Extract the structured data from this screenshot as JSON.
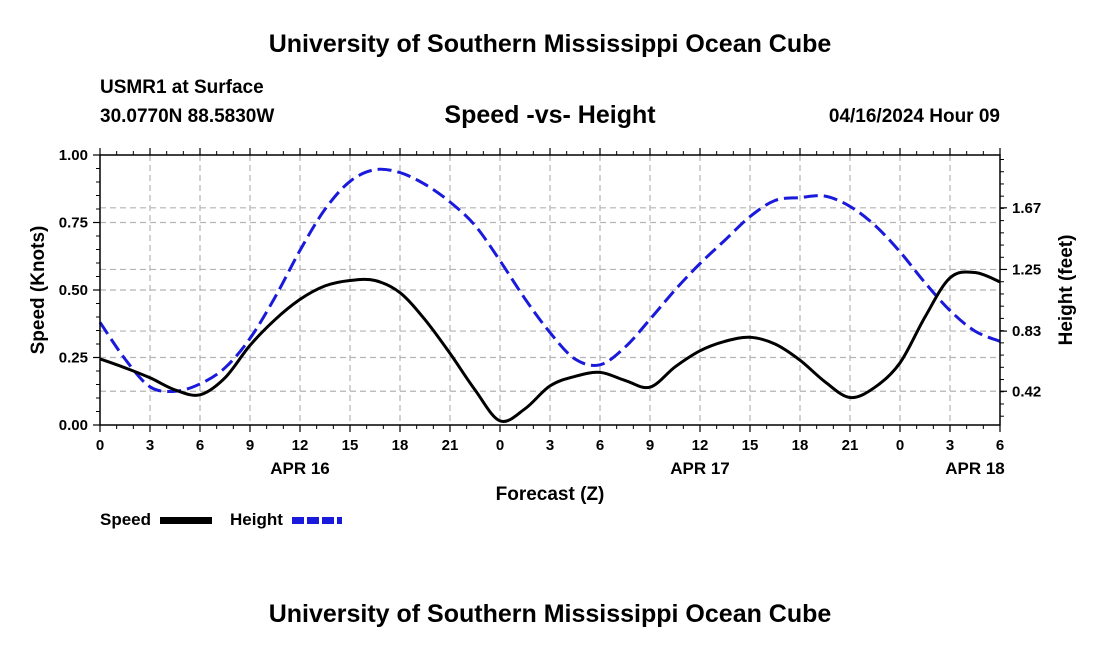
{
  "header": {
    "title": "University of Southern Mississippi Ocean Cube",
    "station": "USMR1 at Surface",
    "coords": "30.0770N  88.5830W",
    "datetime": "04/16/2024 Hour 09"
  },
  "footer": {
    "title": "University of Southern Mississippi Ocean Cube"
  },
  "chart_data": {
    "type": "line",
    "title": "Speed -vs- Height",
    "xlabel": "Forecast (Z)",
    "ylabel_left": "Speed (Knots)",
    "ylabel_right": "Height (feet)",
    "x_hours_range": [
      0,
      54
    ],
    "x_ticks": [
      {
        "h": 0,
        "label": "0"
      },
      {
        "h": 3,
        "label": "3"
      },
      {
        "h": 6,
        "label": "6"
      },
      {
        "h": 9,
        "label": "9"
      },
      {
        "h": 12,
        "label": "12"
      },
      {
        "h": 15,
        "label": "15"
      },
      {
        "h": 18,
        "label": "18"
      },
      {
        "h": 21,
        "label": "21"
      },
      {
        "h": 24,
        "label": "0"
      },
      {
        "h": 27,
        "label": "3"
      },
      {
        "h": 30,
        "label": "6"
      },
      {
        "h": 33,
        "label": "9"
      },
      {
        "h": 36,
        "label": "12"
      },
      {
        "h": 39,
        "label": "15"
      },
      {
        "h": 42,
        "label": "18"
      },
      {
        "h": 45,
        "label": "21"
      },
      {
        "h": 48,
        "label": "0"
      },
      {
        "h": 51,
        "label": "3"
      },
      {
        "h": 54,
        "label": "6"
      }
    ],
    "date_labels": [
      {
        "h": 12,
        "label": "APR 16"
      },
      {
        "h": 36,
        "label": "APR 17"
      },
      {
        "h": 52.5,
        "label": "APR 18"
      }
    ],
    "left_axis": {
      "range": [
        0,
        1
      ],
      "ticks": [
        0,
        0.25,
        0.5,
        0.75,
        1.0
      ],
      "tick_labels": [
        "0.00",
        "0.25",
        "0.50",
        "0.75",
        "1.00"
      ]
    },
    "right_axis": {
      "range": [
        0.19,
        2.03
      ],
      "ticks": [
        0.42,
        0.83,
        1.25,
        1.67
      ],
      "tick_labels": [
        "0.42",
        "0.83",
        "1.25",
        "1.67"
      ]
    },
    "grid": true,
    "series": [
      {
        "name": "Speed",
        "axis": "left",
        "color": "#000000",
        "style": "solid",
        "x": [
          0,
          1.5,
          3,
          4.5,
          6,
          7.5,
          9,
          10.5,
          12,
          13.5,
          15,
          16.5,
          18,
          19.5,
          21,
          22.5,
          24,
          25.5,
          27,
          28.5,
          30,
          31.5,
          33,
          34.5,
          36,
          37.5,
          39,
          40.5,
          42,
          43.5,
          45,
          46.5,
          48,
          49.5,
          51,
          52.5,
          54
        ],
        "values": [
          0.245,
          0.212,
          0.175,
          0.13,
          0.112,
          0.175,
          0.295,
          0.39,
          0.465,
          0.515,
          0.535,
          0.535,
          0.49,
          0.39,
          0.265,
          0.13,
          0.015,
          0.06,
          0.145,
          0.18,
          0.195,
          0.165,
          0.14,
          0.215,
          0.275,
          0.31,
          0.325,
          0.3,
          0.24,
          0.16,
          0.102,
          0.14,
          0.23,
          0.4,
          0.545,
          0.565,
          0.53
        ]
      },
      {
        "name": "Height",
        "axis": "right",
        "color": "#1a1adc",
        "style": "dashed",
        "x": [
          0,
          1.5,
          3,
          4.5,
          6,
          7.5,
          9,
          10.5,
          12,
          13.5,
          15,
          16.5,
          18,
          19.5,
          21,
          22.5,
          24,
          25.5,
          27,
          28.5,
          30,
          31.5,
          33,
          34.5,
          36,
          37.5,
          39,
          40.5,
          42,
          43.5,
          45,
          46.5,
          48,
          49.5,
          51,
          52.5,
          54
        ],
        "values": [
          0.89,
          0.64,
          0.45,
          0.42,
          0.47,
          0.58,
          0.78,
          1.06,
          1.38,
          1.66,
          1.85,
          1.93,
          1.91,
          1.83,
          1.71,
          1.55,
          1.31,
          1.05,
          0.82,
          0.64,
          0.6,
          0.72,
          0.91,
          1.11,
          1.29,
          1.45,
          1.61,
          1.72,
          1.74,
          1.75,
          1.68,
          1.55,
          1.37,
          1.16,
          0.97,
          0.83,
          0.76
        ]
      }
    ],
    "legend": [
      {
        "label": "Speed",
        "color": "#000000",
        "style": "solid"
      },
      {
        "label": "Height",
        "color": "#1a1adc",
        "style": "dashed"
      }
    ]
  }
}
